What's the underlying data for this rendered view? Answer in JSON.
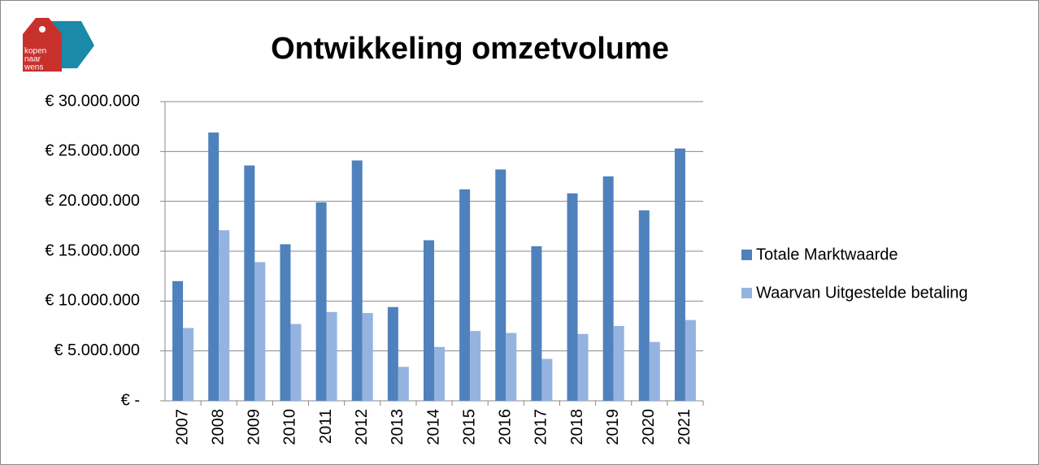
{
  "logo": {
    "lines": [
      "kopen",
      "naar",
      "wens"
    ]
  },
  "chart_data": {
    "type": "bar",
    "title": "Ontwikkeling omzetvolume",
    "categories": [
      "2007",
      "2008",
      "2009",
      "2010",
      "2011",
      "2012",
      "2013",
      "2014",
      "2015",
      "2016",
      "2017",
      "2018",
      "2019",
      "2020",
      "2021"
    ],
    "series": [
      {
        "name": "Totale Marktwaarde",
        "color": "#4f81bd",
        "values": [
          12000000,
          26900000,
          23600000,
          15700000,
          19900000,
          24100000,
          9400000,
          16100000,
          21200000,
          23200000,
          15500000,
          20800000,
          22500000,
          19100000,
          25300000
        ]
      },
      {
        "name": "Waarvan Uitgestelde betaling",
        "color": "#95b3e0",
        "values": [
          7300000,
          17100000,
          13900000,
          7700000,
          8900000,
          8800000,
          3400000,
          5400000,
          7000000,
          6800000,
          4200000,
          6700000,
          7500000,
          5900000,
          8100000
        ]
      }
    ],
    "ylim": [
      0,
      30000000
    ],
    "yticks": [
      {
        "value": 0,
        "label": "€ -"
      },
      {
        "value": 5000000,
        "label": "€ 5.000.000"
      },
      {
        "value": 10000000,
        "label": "€ 10.000.000"
      },
      {
        "value": 15000000,
        "label": "€ 15.000.000"
      },
      {
        "value": 20000000,
        "label": "€ 20.000.000"
      },
      {
        "value": 25000000,
        "label": "€ 25.000.000"
      },
      {
        "value": 30000000,
        "label": "€ 30.000.000"
      }
    ],
    "grid": true,
    "legend": "right"
  }
}
